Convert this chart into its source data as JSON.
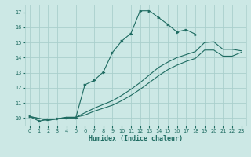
{
  "xlabel": "Humidex (Indice chaleur)",
  "bg_color": "#cce8e5",
  "grid_color": "#aacfcc",
  "line_color": "#1e6b61",
  "xlim": [
    -0.5,
    23.5
  ],
  "ylim": [
    9.5,
    17.5
  ],
  "xticks": [
    0,
    1,
    2,
    3,
    4,
    5,
    6,
    7,
    8,
    9,
    10,
    11,
    12,
    13,
    14,
    15,
    16,
    17,
    18,
    19,
    20,
    21,
    22,
    23
  ],
  "yticks": [
    10,
    11,
    12,
    13,
    14,
    15,
    16,
    17
  ],
  "lines": [
    {
      "x": [
        0,
        1,
        2,
        3,
        4,
        5,
        6,
        7,
        8,
        9,
        10,
        11,
        12,
        13,
        14,
        15,
        16,
        17,
        18
      ],
      "y": [
        10.1,
        9.8,
        9.9,
        9.95,
        10.0,
        10.0,
        12.2,
        12.5,
        13.05,
        14.35,
        15.1,
        15.6,
        17.1,
        17.1,
        16.65,
        16.2,
        15.7,
        15.85,
        15.55
      ],
      "marker": true
    },
    {
      "x": [
        0,
        2,
        3,
        4,
        5,
        6,
        7,
        8,
        9,
        10,
        11,
        12,
        13,
        14,
        15,
        16,
        17,
        18,
        19,
        20,
        21,
        22,
        23
      ],
      "y": [
        10.1,
        9.85,
        9.95,
        10.05,
        10.05,
        10.35,
        10.65,
        10.9,
        11.15,
        11.5,
        11.9,
        12.35,
        12.85,
        13.35,
        13.7,
        14.0,
        14.2,
        14.4,
        15.0,
        15.05,
        14.55,
        14.55,
        14.45
      ],
      "marker": false
    },
    {
      "x": [
        0,
        2,
        3,
        4,
        5,
        6,
        7,
        8,
        9,
        10,
        11,
        12,
        13,
        14,
        15,
        16,
        17,
        18,
        19,
        20,
        21,
        22,
        23
      ],
      "y": [
        10.1,
        9.85,
        9.95,
        10.05,
        10.05,
        10.2,
        10.45,
        10.65,
        10.85,
        11.15,
        11.5,
        11.9,
        12.35,
        12.8,
        13.2,
        13.5,
        13.75,
        13.95,
        14.5,
        14.5,
        14.1,
        14.1,
        14.35
      ],
      "marker": false
    }
  ]
}
